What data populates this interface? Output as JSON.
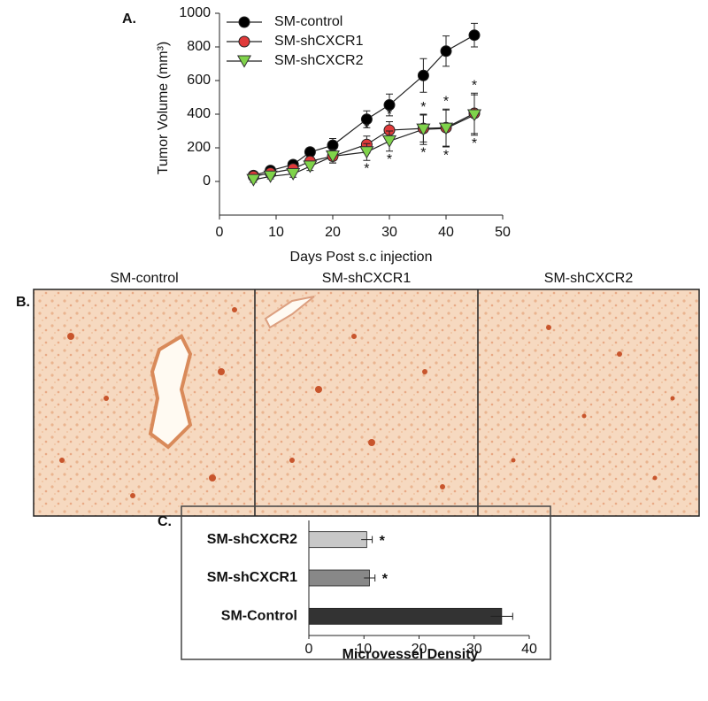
{
  "chart_data": [
    {
      "type": "line",
      "panel_label": "A.",
      "xlabel": "Days Post s.c injection",
      "ylabel": "Tumor Volume (mm³)",
      "x": [
        6,
        9,
        13,
        16,
        20,
        26,
        30,
        36,
        40,
        45
      ],
      "series": [
        {
          "name": "SM-control",
          "color": "#000000",
          "marker": "circle",
          "values": [
            35,
            65,
            100,
            175,
            215,
            370,
            455,
            630,
            775,
            870
          ],
          "errors": [
            15,
            20,
            20,
            25,
            40,
            50,
            65,
            100,
            90,
            70
          ]
        },
        {
          "name": "SM-shCXCR1",
          "color": "#e03a3a",
          "marker": "circle",
          "values": [
            30,
            50,
            75,
            120,
            150,
            220,
            305,
            315,
            320,
            405
          ],
          "errors": [
            15,
            15,
            20,
            25,
            40,
            50,
            50,
            80,
            110,
            120
          ]
        },
        {
          "name": "SM-shCXCR2",
          "color": "#7fd34a",
          "marker": "triangle-down",
          "values": [
            10,
            30,
            45,
            90,
            150,
            175,
            240,
            310,
            315,
            395
          ],
          "errors": [
            15,
            15,
            20,
            25,
            40,
            50,
            60,
            90,
            110,
            120
          ]
        }
      ],
      "significance_label": "*",
      "significant_x": [
        26,
        30,
        36,
        40,
        45
      ],
      "xlim": [
        0,
        50
      ],
      "xticks": [
        0,
        10,
        20,
        30,
        40,
        50
      ],
      "ylim": [
        -200,
        1000
      ],
      "yticks": [
        0,
        200,
        400,
        600,
        800,
        1000
      ],
      "grid": false,
      "legend": "upper left"
    },
    {
      "type": "hbar",
      "panel_label": "C.",
      "xlabel": "Microvessel Density",
      "categories": [
        "SM-Control",
        "SM-shCXCR1",
        "SM-shCXCR2"
      ],
      "values": [
        35,
        11,
        10.5
      ],
      "errors": [
        2,
        1,
        1
      ],
      "colors": [
        "#333333",
        "#888888",
        "#c8c8c8"
      ],
      "significance_label": "*",
      "significant": [
        false,
        true,
        true
      ],
      "xlim": [
        0,
        40
      ],
      "xticks": [
        0,
        10,
        20,
        30,
        40
      ],
      "grid": false
    }
  ],
  "images": {
    "panel_label": "B.",
    "titles": [
      "SM-control",
      "SM-shCXCR1",
      "SM-shCXCR2"
    ]
  }
}
